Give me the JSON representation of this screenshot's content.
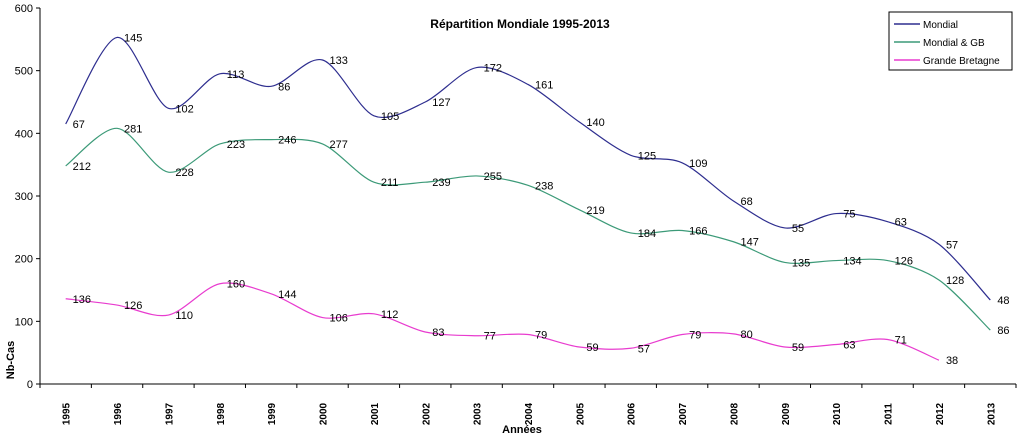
{
  "chart_data": {
    "type": "line",
    "title": "Répartition Mondiale 1995-2013",
    "xlabel": "Années",
    "ylabel": "Nb-Cas",
    "ylim": [
      0,
      600
    ],
    "yticks": [
      0,
      100,
      200,
      300,
      400,
      500,
      600
    ],
    "grid": false,
    "legend_position": "top-right",
    "categories": [
      "1995",
      "1996",
      "1997",
      "1998",
      "1999",
      "2000",
      "2001",
      "2002",
      "2003",
      "2004",
      "2005",
      "2006",
      "2007",
      "2008",
      "2009",
      "2010",
      "2011",
      "2012",
      "2013"
    ],
    "series": [
      {
        "name": "Mondial",
        "color": "#2e2e8f",
        "values": [
          415,
          553,
          440,
          495,
          475,
          517,
          428,
          450,
          505,
          478,
          418,
          365,
          353,
          292,
          249,
          272,
          259,
          223,
          134
        ],
        "labels": [
          "67",
          "145",
          "102",
          "113",
          "86",
          "133",
          "105",
          "127",
          "172",
          "161",
          "140",
          "125",
          "109",
          "68",
          "55",
          "75",
          "63",
          "57",
          "48"
        ]
      },
      {
        "name": "Mondial & GB",
        "color": "#3c9a78",
        "values": [
          348,
          408,
          338,
          383,
          390,
          383,
          322,
          322,
          332,
          317,
          278,
          241,
          245,
          227,
          194,
          197,
          197,
          166,
          86
        ],
        "labels": [
          "212",
          "281",
          "228",
          "223",
          "246",
          "277",
          "211",
          "239",
          "255",
          "238",
          "219",
          "184",
          "166",
          "147",
          "135",
          "134",
          "126",
          "128",
          "86"
        ]
      },
      {
        "name": "Grande Bretagne",
        "color": "#e83ccf",
        "values": [
          136,
          126,
          110,
          160,
          144,
          106,
          112,
          83,
          77,
          79,
          59,
          57,
          79,
          80,
          59,
          63,
          71,
          38,
          null
        ],
        "labels": [
          "136",
          "126",
          "110",
          "160",
          "144",
          "106",
          "112",
          "83",
          "77",
          "79",
          "59",
          "57",
          "79",
          "80",
          "59",
          "63",
          "71",
          "38",
          ""
        ]
      }
    ]
  }
}
